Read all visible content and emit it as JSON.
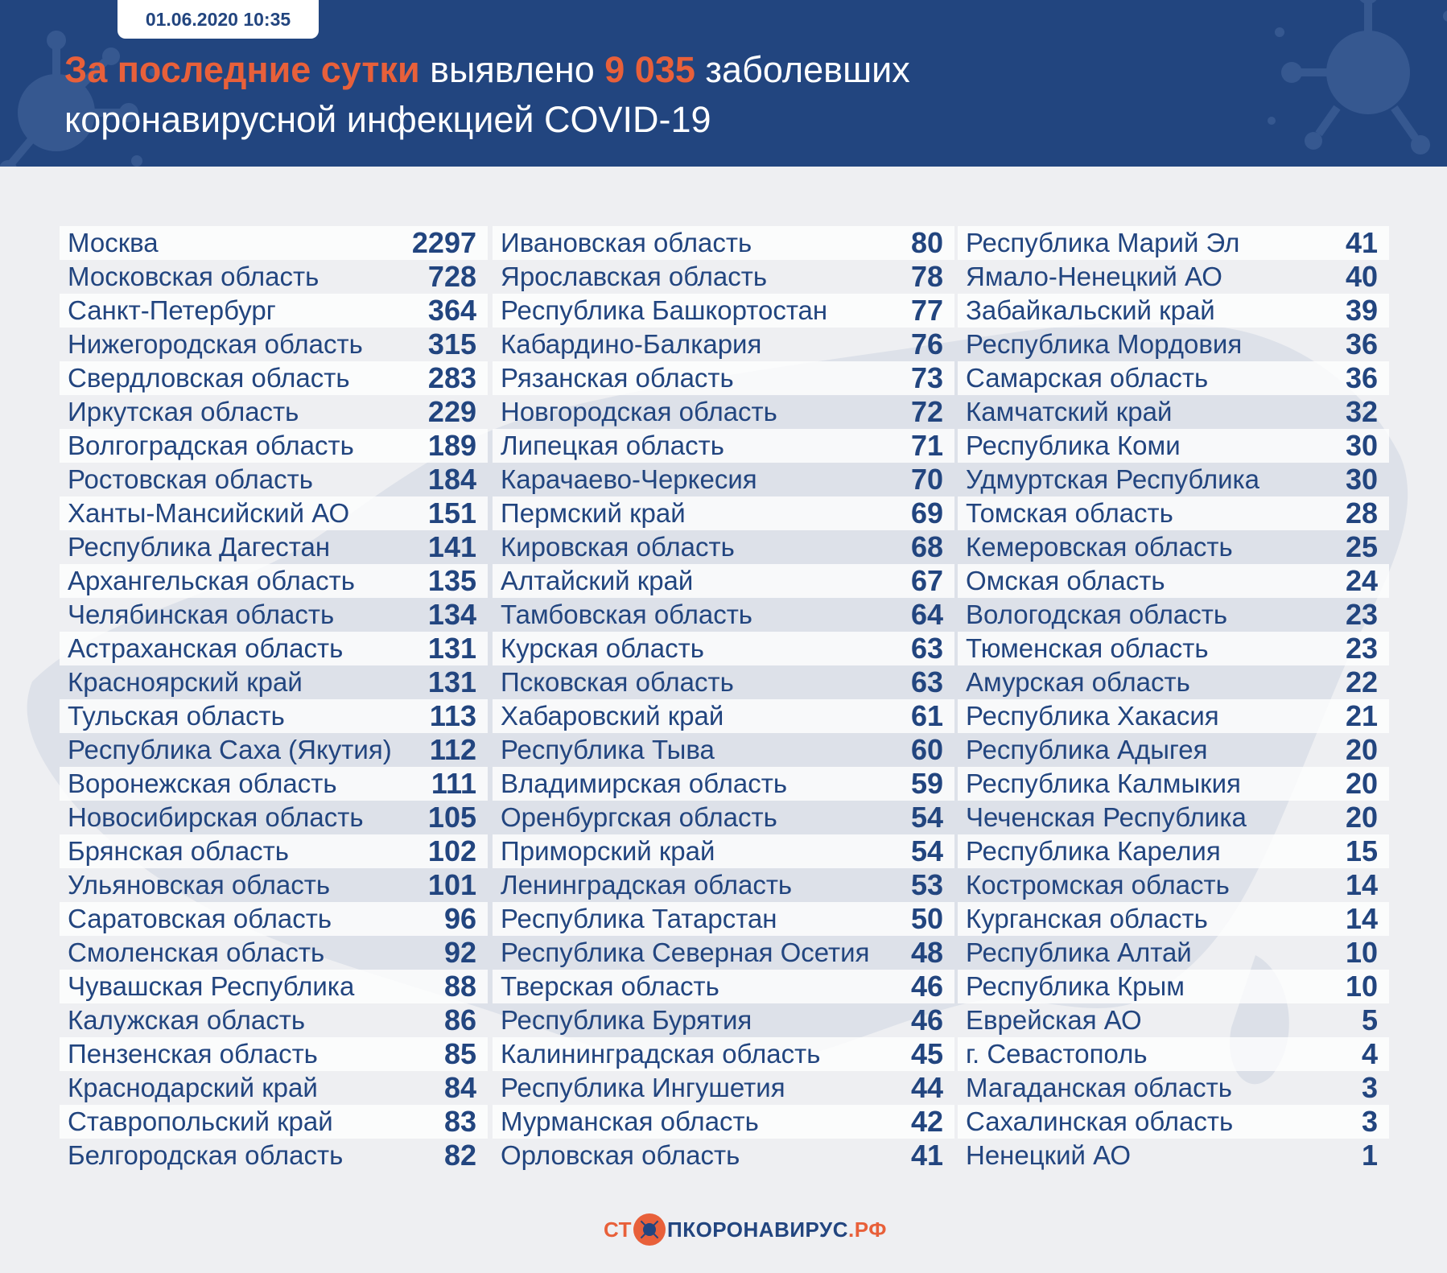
{
  "header": {
    "date": "01.06.2020 10:35",
    "title_accent": "За последние сутки",
    "title_mid": " выявлено ",
    "title_number": "9 035",
    "title_end": " заболевших",
    "title_line2": "коронавирусной инфекцией COVID-19"
  },
  "colors": {
    "header_bg": "#22457f",
    "accent": "#e8603a",
    "text": "#22457f"
  },
  "columns": [
    [
      {
        "name": "Москва",
        "value": "2297"
      },
      {
        "name": "Московская область",
        "value": "728"
      },
      {
        "name": "Санкт-Петербург",
        "value": "364"
      },
      {
        "name": "Нижегородская область",
        "value": "315"
      },
      {
        "name": "Свердловская область",
        "value": "283"
      },
      {
        "name": "Иркутская область",
        "value": "229"
      },
      {
        "name": "Волгоградская область",
        "value": "189"
      },
      {
        "name": "Ростовская область",
        "value": "184"
      },
      {
        "name": "Ханты-Мансийский АО",
        "value": "151"
      },
      {
        "name": "Республика Дагестан",
        "value": "141"
      },
      {
        "name": "Архангельская область",
        "value": "135"
      },
      {
        "name": "Челябинская область",
        "value": "134"
      },
      {
        "name": "Астраханская область",
        "value": "131"
      },
      {
        "name": "Красноярский край",
        "value": "131"
      },
      {
        "name": "Тульская область",
        "value": "113"
      },
      {
        "name": "Республика Саха (Якутия)",
        "value": "112"
      },
      {
        "name": "Воронежская область",
        "value": "111"
      },
      {
        "name": "Новосибирская область",
        "value": "105"
      },
      {
        "name": "Брянская область",
        "value": "102"
      },
      {
        "name": "Ульяновская область",
        "value": "101"
      },
      {
        "name": "Саратовская область",
        "value": "96"
      },
      {
        "name": "Смоленская область",
        "value": "92"
      },
      {
        "name": "Чувашская Республика",
        "value": "88"
      },
      {
        "name": "Калужская область",
        "value": "86"
      },
      {
        "name": "Пензенская область",
        "value": "85"
      },
      {
        "name": "Краснодарский край",
        "value": "84"
      },
      {
        "name": "Ставропольский край",
        "value": "83"
      },
      {
        "name": "Белгородская область",
        "value": "82"
      }
    ],
    [
      {
        "name": "Ивановская область",
        "value": "80"
      },
      {
        "name": "Ярославская область",
        "value": "78"
      },
      {
        "name": "Республика Башкортостан",
        "value": "77"
      },
      {
        "name": "Кабардино-Балкария",
        "value": "76"
      },
      {
        "name": "Рязанская область",
        "value": "73"
      },
      {
        "name": "Новгородская область",
        "value": "72"
      },
      {
        "name": "Липецкая область",
        "value": "71"
      },
      {
        "name": "Карачаево-Черкесия",
        "value": "70"
      },
      {
        "name": "Пермский край",
        "value": "69"
      },
      {
        "name": "Кировская область",
        "value": "68"
      },
      {
        "name": "Алтайский край",
        "value": "67"
      },
      {
        "name": "Тамбовская область",
        "value": "64"
      },
      {
        "name": "Курская область",
        "value": "63"
      },
      {
        "name": "Псковская область",
        "value": "63"
      },
      {
        "name": "Хабаровский край",
        "value": "61"
      },
      {
        "name": "Республика Тыва",
        "value": "60"
      },
      {
        "name": "Владимирская область",
        "value": "59"
      },
      {
        "name": "Оренбургская область",
        "value": "54"
      },
      {
        "name": "Приморский край",
        "value": "54"
      },
      {
        "name": "Ленинградская область",
        "value": "53"
      },
      {
        "name": "Республика Татарстан",
        "value": "50"
      },
      {
        "name": "Республика Северная Осетия",
        "value": "48"
      },
      {
        "name": "Тверская область",
        "value": "46"
      },
      {
        "name": "Республика Бурятия",
        "value": "46"
      },
      {
        "name": "Калининградская область",
        "value": "45"
      },
      {
        "name": "Республика Ингушетия",
        "value": "44"
      },
      {
        "name": "Мурманская область",
        "value": "42"
      },
      {
        "name": "Орловская область",
        "value": "41"
      }
    ],
    [
      {
        "name": "Республика Марий Эл",
        "value": "41"
      },
      {
        "name": "Ямало-Ненецкий АО",
        "value": "40"
      },
      {
        "name": "Забайкальский край",
        "value": "39"
      },
      {
        "name": "Республика Мордовия",
        "value": "36"
      },
      {
        "name": "Самарская область",
        "value": "36"
      },
      {
        "name": "Камчатский край",
        "value": "32"
      },
      {
        "name": "Республика Коми",
        "value": "30"
      },
      {
        "name": "Удмуртская Республика",
        "value": "30"
      },
      {
        "name": "Томская область",
        "value": "28"
      },
      {
        "name": "Кемеровская область",
        "value": "25"
      },
      {
        "name": "Омская область",
        "value": "24"
      },
      {
        "name": "Вологодская область",
        "value": "23"
      },
      {
        "name": "Тюменская область",
        "value": "23"
      },
      {
        "name": "Амурская область",
        "value": "22"
      },
      {
        "name": "Республика Хакасия",
        "value": "21"
      },
      {
        "name": "Республика Адыгея",
        "value": "20"
      },
      {
        "name": "Республика Калмыкия",
        "value": "20"
      },
      {
        "name": "Чеченская Республика",
        "value": "20"
      },
      {
        "name": "Республика Карелия",
        "value": "15"
      },
      {
        "name": "Костромская область",
        "value": "14"
      },
      {
        "name": "Курганская область",
        "value": "14"
      },
      {
        "name": "Республика Алтай",
        "value": "10"
      },
      {
        "name": "Республика Крым",
        "value": "10"
      },
      {
        "name": "Еврейская АО",
        "value": "5"
      },
      {
        "name": "г. Севастополь",
        "value": "4"
      },
      {
        "name": "Магаданская область",
        "value": "3"
      },
      {
        "name": "Сахалинская область",
        "value": "3"
      },
      {
        "name": "Ненецкий АО",
        "value": "1"
      }
    ]
  ],
  "footer": {
    "logo_left": "СТ",
    "logo_right": "ПКОРОНАВИРУС",
    "logo_suffix": ".РФ"
  }
}
